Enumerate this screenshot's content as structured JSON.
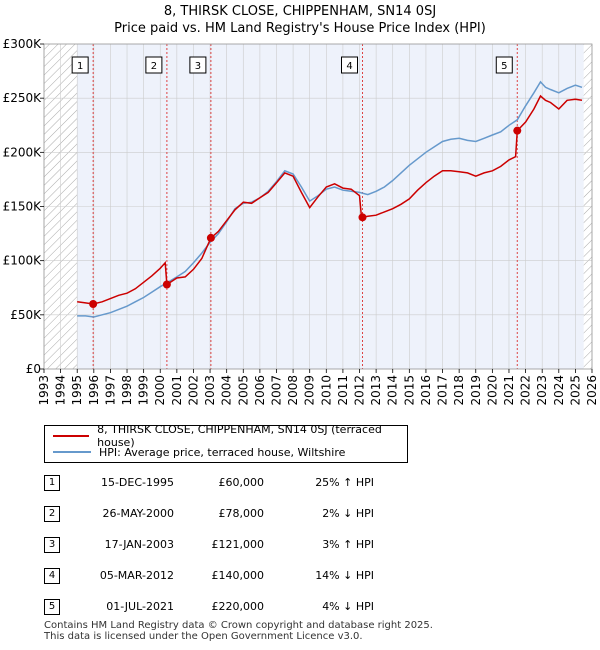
{
  "chart_data": {
    "type": "line",
    "title": "8, THIRSK CLOSE, CHIPPENHAM, SN14 0SJ",
    "subtitle": "Price paid vs. HM Land Registry's House Price Index (HPI)",
    "xlim": [
      1993,
      2026
    ],
    "ylim": [
      0,
      300000
    ],
    "x_ticks": [
      "1993",
      "1994",
      "1995",
      "1996",
      "1997",
      "1998",
      "1999",
      "2000",
      "2001",
      "2002",
      "2003",
      "2004",
      "2005",
      "2006",
      "2007",
      "2008",
      "2009",
      "2010",
      "2011",
      "2012",
      "2013",
      "2014",
      "2015",
      "2016",
      "2017",
      "2018",
      "2019",
      "2020",
      "2021",
      "2022",
      "2023",
      "2024",
      "2025",
      "2026"
    ],
    "y_ticks": [
      {
        "value": 0,
        "label": "£0"
      },
      {
        "value": 50000,
        "label": "£50K"
      },
      {
        "value": 100000,
        "label": "£100K"
      },
      {
        "value": 150000,
        "label": "£150K"
      },
      {
        "value": 200000,
        "label": "£200K"
      },
      {
        "value": 250000,
        "label": "£250K"
      },
      {
        "value": 300000,
        "label": "£300K"
      }
    ],
    "hatched_before": 1995.0,
    "hatched_after": 2025.5,
    "series": [
      {
        "name": "8, THIRSK CLOSE, CHIPPENHAM, SN14 0SJ (terraced house)",
        "color": "#cc0000",
        "points": [
          [
            1995.0,
            62000
          ],
          [
            1995.5,
            61000
          ],
          [
            1995.96,
            60000
          ],
          [
            1996.5,
            62000
          ],
          [
            1997.0,
            65000
          ],
          [
            1997.5,
            68000
          ],
          [
            1998.0,
            70000
          ],
          [
            1998.5,
            74000
          ],
          [
            1999.0,
            80000
          ],
          [
            1999.5,
            86000
          ],
          [
            2000.0,
            93000
          ],
          [
            2000.3,
            98000
          ],
          [
            2000.4,
            78000
          ],
          [
            2001.0,
            84000
          ],
          [
            2001.5,
            85000
          ],
          [
            2002.0,
            92000
          ],
          [
            2002.5,
            102000
          ],
          [
            2003.05,
            121000
          ],
          [
            2003.5,
            127000
          ],
          [
            2004.0,
            137000
          ],
          [
            2004.5,
            147000
          ],
          [
            2005.0,
            154000
          ],
          [
            2005.5,
            153000
          ],
          [
            2006.0,
            158000
          ],
          [
            2006.5,
            163000
          ],
          [
            2007.0,
            172000
          ],
          [
            2007.5,
            181000
          ],
          [
            2008.0,
            178000
          ],
          [
            2008.5,
            163000
          ],
          [
            2009.0,
            149000
          ],
          [
            2009.5,
            159000
          ],
          [
            2010.0,
            168000
          ],
          [
            2010.5,
            171000
          ],
          [
            2011.0,
            167000
          ],
          [
            2011.5,
            166000
          ],
          [
            2012.0,
            160000
          ],
          [
            2012.1,
            143000
          ],
          [
            2012.18,
            140000
          ],
          [
            2012.5,
            141000
          ],
          [
            2013.0,
            142000
          ],
          [
            2013.5,
            145000
          ],
          [
            2014.0,
            148000
          ],
          [
            2014.5,
            152000
          ],
          [
            2015.0,
            157000
          ],
          [
            2015.5,
            165000
          ],
          [
            2016.0,
            172000
          ],
          [
            2016.5,
            178000
          ],
          [
            2017.0,
            183000
          ],
          [
            2017.5,
            183000
          ],
          [
            2018.0,
            182000
          ],
          [
            2018.5,
            181000
          ],
          [
            2019.0,
            178000
          ],
          [
            2019.5,
            181000
          ],
          [
            2020.0,
            183000
          ],
          [
            2020.5,
            187000
          ],
          [
            2021.0,
            193000
          ],
          [
            2021.4,
            196000
          ],
          [
            2021.5,
            220000
          ],
          [
            2022.0,
            228000
          ],
          [
            2022.5,
            240000
          ],
          [
            2022.9,
            252000
          ],
          [
            2023.2,
            248000
          ],
          [
            2023.5,
            246000
          ],
          [
            2024.0,
            240000
          ],
          [
            2024.5,
            248000
          ],
          [
            2025.0,
            249000
          ],
          [
            2025.4,
            248000
          ]
        ]
      },
      {
        "name": "HPI: Average price, terraced house, Wiltshire",
        "color": "#6699cc",
        "points": [
          [
            1995.0,
            49000
          ],
          [
            1995.5,
            49000
          ],
          [
            1996.0,
            48000
          ],
          [
            1996.5,
            50000
          ],
          [
            1997.0,
            52000
          ],
          [
            1997.5,
            55000
          ],
          [
            1998.0,
            58000
          ],
          [
            1998.5,
            62000
          ],
          [
            1999.0,
            66000
          ],
          [
            1999.5,
            71000
          ],
          [
            2000.0,
            76000
          ],
          [
            2000.4,
            79500
          ],
          [
            2001.0,
            85000
          ],
          [
            2001.5,
            90000
          ],
          [
            2002.0,
            98000
          ],
          [
            2002.5,
            107000
          ],
          [
            2003.0,
            117000
          ],
          [
            2003.5,
            125000
          ],
          [
            2004.0,
            136000
          ],
          [
            2004.5,
            148000
          ],
          [
            2005.0,
            153000
          ],
          [
            2005.5,
            154000
          ],
          [
            2006.0,
            158000
          ],
          [
            2006.5,
            164000
          ],
          [
            2007.0,
            173000
          ],
          [
            2007.5,
            183000
          ],
          [
            2008.0,
            180000
          ],
          [
            2008.5,
            168000
          ],
          [
            2009.0,
            155000
          ],
          [
            2009.5,
            160000
          ],
          [
            2010.0,
            166000
          ],
          [
            2010.5,
            168000
          ],
          [
            2011.0,
            165000
          ],
          [
            2011.5,
            164000
          ],
          [
            2012.0,
            163000
          ],
          [
            2012.5,
            161000
          ],
          [
            2013.0,
            164000
          ],
          [
            2013.5,
            168000
          ],
          [
            2014.0,
            174000
          ],
          [
            2014.5,
            181000
          ],
          [
            2015.0,
            188000
          ],
          [
            2015.5,
            194000
          ],
          [
            2016.0,
            200000
          ],
          [
            2016.5,
            205000
          ],
          [
            2017.0,
            210000
          ],
          [
            2017.5,
            212000
          ],
          [
            2018.0,
            213000
          ],
          [
            2018.5,
            211000
          ],
          [
            2019.0,
            210000
          ],
          [
            2019.5,
            213000
          ],
          [
            2020.0,
            216000
          ],
          [
            2020.5,
            219000
          ],
          [
            2021.0,
            225000
          ],
          [
            2021.5,
            230000
          ],
          [
            2022.0,
            243000
          ],
          [
            2022.5,
            255000
          ],
          [
            2022.9,
            265000
          ],
          [
            2023.2,
            260000
          ],
          [
            2023.5,
            258000
          ],
          [
            2024.0,
            255000
          ],
          [
            2024.5,
            259000
          ],
          [
            2025.0,
            262000
          ],
          [
            2025.4,
            260000
          ]
        ]
      }
    ],
    "sales": [
      {
        "id": "1",
        "date": "15-DEC-1995",
        "x": 1995.96,
        "price": 60000,
        "price_label": "£60,000",
        "hpi": "25% ↑ HPI"
      },
      {
        "id": "2",
        "date": "26-MAY-2000",
        "x": 2000.4,
        "price": 78000,
        "price_label": "£78,000",
        "hpi": "2% ↓ HPI"
      },
      {
        "id": "3",
        "date": "17-JAN-2003",
        "x": 2003.05,
        "price": 121000,
        "price_label": "£121,000",
        "hpi": "3% ↑ HPI"
      },
      {
        "id": "4",
        "date": "05-MAR-2012",
        "x": 2012.18,
        "price": 140000,
        "price_label": "£140,000",
        "hpi": "14% ↓ HPI"
      },
      {
        "id": "5",
        "date": "01-JUL-2021",
        "x": 2021.5,
        "price": 220000,
        "price_label": "£220,000",
        "hpi": "4% ↓ HPI"
      }
    ]
  },
  "legend": {
    "property": "8, THIRSK CLOSE, CHIPPENHAM, SN14 0SJ (terraced house)",
    "hpi": "HPI: Average price, terraced house, Wiltshire"
  },
  "footer": {
    "line1": "Contains HM Land Registry data © Crown copyright and database right 2025.",
    "line2": "This data is licensed under the Open Government Licence v3.0."
  },
  "colors": {
    "property": "#cc0000",
    "hpi": "#6699cc",
    "plot_bg": "#eef2fb",
    "grid": "#cccccc",
    "hatch": "#aaaaaa",
    "marker_line": "#dd4444"
  }
}
